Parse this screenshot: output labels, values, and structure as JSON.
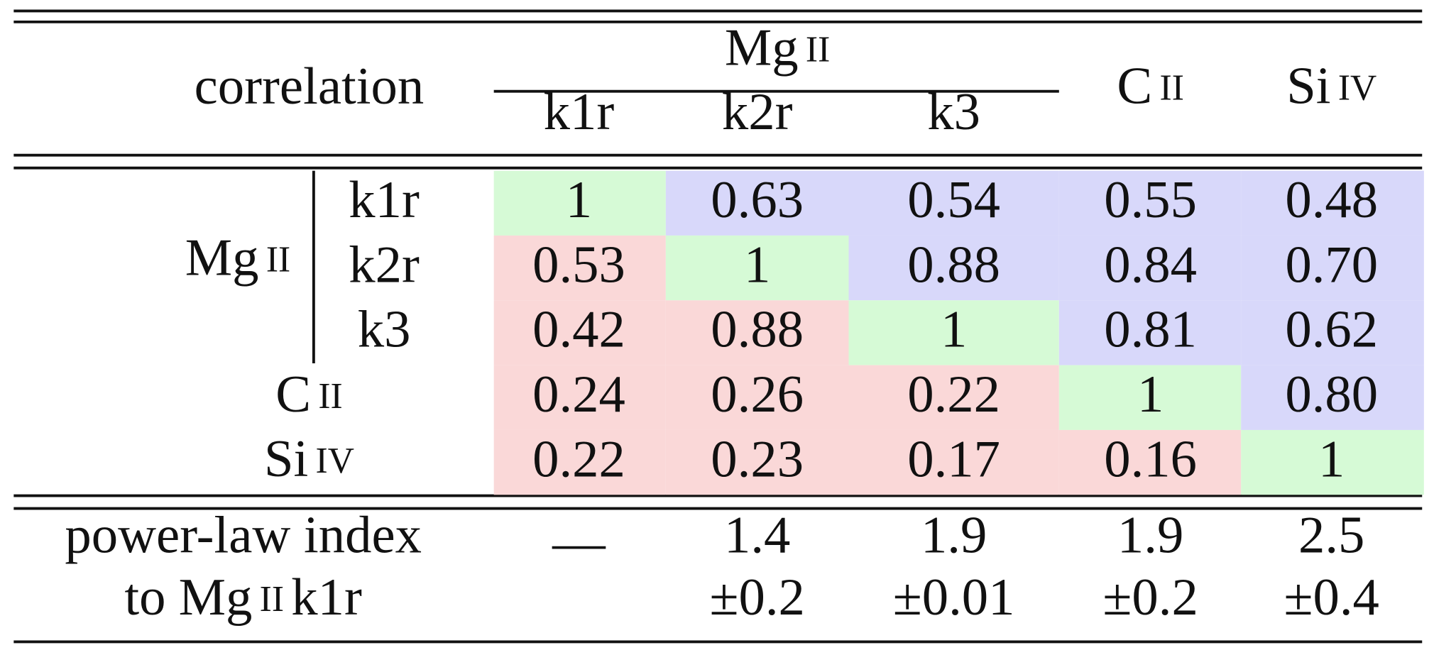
{
  "header": {
    "corner": "correlation",
    "group": {
      "element": "Mg",
      "stage": "II"
    },
    "sub": [
      "k1r",
      "k2r",
      "k3"
    ],
    "others": [
      {
        "element": "C",
        "stage": "II"
      },
      {
        "element": "Si",
        "stage": "IV"
      }
    ]
  },
  "row_group": {
    "element": "Mg",
    "stage": "II"
  },
  "rows": [
    {
      "label": "k1r",
      "cells": [
        "1",
        "0.63",
        "0.54",
        "0.55",
        "0.48"
      ]
    },
    {
      "label": "k2r",
      "cells": [
        "0.53",
        "1",
        "0.88",
        "0.84",
        "0.70"
      ]
    },
    {
      "label": "k3",
      "cells": [
        "0.42",
        "0.88",
        "1",
        "0.81",
        "0.62"
      ]
    },
    {
      "label": {
        "element": "C",
        "stage": "II"
      },
      "cells": [
        "0.24",
        "0.26",
        "0.22",
        "1",
        "0.80"
      ]
    },
    {
      "label": {
        "element": "Si",
        "stage": "IV"
      },
      "cells": [
        "0.22",
        "0.23",
        "0.17",
        "0.16",
        "1"
      ]
    }
  ],
  "power_law": {
    "label": "power-law index",
    "label2": {
      "prefix": "to",
      "element": "Mg",
      "stage": "II",
      "line": "k1r"
    },
    "values": [
      {
        "value": "—"
      },
      {
        "value": "1.4",
        "error": "±0.2"
      },
      {
        "value": "1.9",
        "error": "±0.01"
      },
      {
        "value": "1.9",
        "error": "±0.2"
      },
      {
        "value": "2.5",
        "error": "±0.4"
      }
    ]
  }
}
